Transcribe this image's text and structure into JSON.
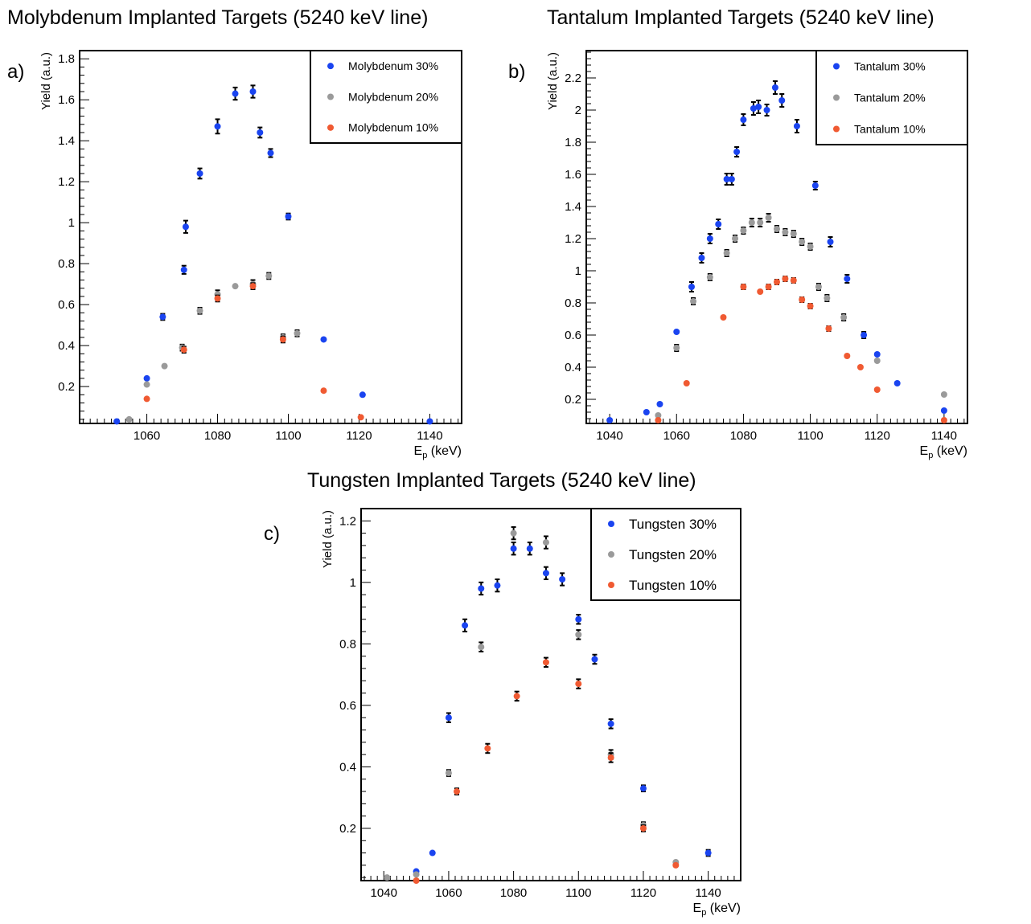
{
  "colors": {
    "blue": "#1a44f0",
    "gray": "#9a9a9a",
    "orange": "#f05a32",
    "error_bar": "#000000",
    "frame": "#000000"
  },
  "chart_data": [
    {
      "type": "scatter",
      "panel_label": "a)",
      "title": "Molybdenum Implanted Targets (5240 keV line)",
      "xlabel_main": "E",
      "xlabel_sub": "p",
      "xlabel_unit": " (keV)",
      "ylabel": "Yield (a.u.)",
      "xlim": [
        1041,
        1149
      ],
      "ylim": [
        0.02,
        1.84
      ],
      "xticks": [
        1060,
        1080,
        1100,
        1120,
        1140
      ],
      "xtick_labels": [
        "1060",
        "1080",
        "1100",
        "1120",
        "1140"
      ],
      "yticks": [
        0.2,
        0.4,
        0.6,
        0.8,
        1,
        1.2,
        1.4,
        1.6,
        1.8
      ],
      "ytick_labels": [
        "0.2",
        "0.4",
        "0.6",
        "0.8",
        "1",
        "1.2",
        "1.4",
        "1.6",
        "1.8"
      ],
      "legend_position": "top-right",
      "series": [
        {
          "name": "Molybdenum 30%",
          "color": "blue",
          "x": [
            1051.5,
            1060,
            1064.5,
            1070.5,
            1071,
            1075,
            1080,
            1085,
            1090,
            1092,
            1095,
            1100,
            1110,
            1121,
            1140
          ],
          "y": [
            0.03,
            0.24,
            0.54,
            0.77,
            0.98,
            1.24,
            1.47,
            1.63,
            1.64,
            1.44,
            1.34,
            1.03,
            0.43,
            0.16,
            0.03
          ],
          "err": [
            0.005,
            0,
            0.015,
            0.02,
            0.03,
            0.025,
            0.035,
            0.03,
            0.03,
            0.025,
            0.02,
            0.015,
            0,
            0,
            0
          ]
        },
        {
          "name": "Molybdenum 20%",
          "color": "gray",
          "x": [
            1055,
            1060,
            1065,
            1070,
            1075,
            1080,
            1085,
            1090,
            1094.5,
            1098.5,
            1102.5
          ],
          "y": [
            0.04,
            0.21,
            0.3,
            0.39,
            0.57,
            0.65,
            0.69,
            0.7,
            0.74,
            0.44,
            0.46
          ],
          "err": [
            0,
            0,
            0,
            0.015,
            0.015,
            0.02,
            0,
            0.02,
            0.015,
            0.015,
            0.015
          ]
        },
        {
          "name": "Molybdenum 10%",
          "color": "orange",
          "x": [
            1060,
            1070.5,
            1080,
            1090,
            1098.5,
            1110,
            1120.5
          ],
          "y": [
            0.14,
            0.38,
            0.63,
            0.69,
            0.43,
            0.18,
            0.05
          ],
          "err": [
            0,
            0.015,
            0.015,
            0.015,
            0.015,
            0,
            0
          ]
        }
      ]
    },
    {
      "type": "scatter",
      "panel_label": "b)",
      "title": "Tantalum Implanted Targets (5240 keV line)",
      "xlabel_main": "E",
      "xlabel_sub": "p",
      "xlabel_unit": " (keV)",
      "ylabel": "Yield (a.u.)",
      "xlim": [
        1033,
        1147
      ],
      "ylim": [
        0.05,
        2.37
      ],
      "xticks": [
        1040,
        1060,
        1080,
        1100,
        1120,
        1140
      ],
      "xtick_labels": [
        "1040",
        "1060",
        "1080",
        "1100",
        "1120",
        "1140"
      ],
      "yticks": [
        0.2,
        0.4,
        0.6,
        0.8,
        1,
        1.2,
        1.4,
        1.6,
        1.8,
        2,
        2.2
      ],
      "ytick_labels": [
        "0.2",
        "0.4",
        "0.6",
        "0.8",
        "1",
        "1.2",
        "1.4",
        "1.6",
        "1.8",
        "2",
        "2.2"
      ],
      "legend_position": "top-right",
      "series": [
        {
          "name": "Tantalum 30%",
          "color": "blue",
          "x": [
            1040,
            1051,
            1055,
            1060,
            1064.5,
            1067.5,
            1070,
            1072.5,
            1075,
            1076.5,
            1078,
            1080,
            1083,
            1084.5,
            1087,
            1089.5,
            1091.5,
            1096,
            1101.5,
            1106,
            1111,
            1116,
            1120,
            1126,
            1140
          ],
          "y": [
            0.07,
            0.12,
            0.17,
            0.62,
            0.9,
            1.08,
            1.2,
            1.29,
            1.57,
            1.57,
            1.74,
            1.94,
            2.01,
            2.02,
            2,
            2.14,
            2.06,
            1.9,
            1.53,
            1.18,
            0.95,
            0.6,
            0.48,
            0.3,
            0.13
          ],
          "err": [
            0,
            0,
            0,
            0,
            0.03,
            0.03,
            0.03,
            0.03,
            0.035,
            0.035,
            0.03,
            0.035,
            0.04,
            0.04,
            0.035,
            0.04,
            0.04,
            0.04,
            0.025,
            0.03,
            0.025,
            0.02,
            0,
            0,
            0
          ]
        },
        {
          "name": "Tantalum 20%",
          "color": "gray",
          "x": [
            1054.5,
            1060,
            1065,
            1070,
            1075,
            1077.5,
            1080,
            1082.5,
            1085,
            1087.5,
            1090,
            1092.5,
            1095,
            1097.5,
            1100,
            1102.5,
            1105,
            1110,
            1120,
            1140
          ],
          "y": [
            0.1,
            0.52,
            0.81,
            0.96,
            1.11,
            1.2,
            1.25,
            1.3,
            1.3,
            1.33,
            1.26,
            1.24,
            1.23,
            1.18,
            1.15,
            0.9,
            0.83,
            0.71,
            0.44,
            0.23
          ],
          "err": [
            0,
            0.02,
            0.02,
            0.02,
            0.02,
            0.02,
            0.02,
            0.025,
            0.025,
            0.025,
            0.02,
            0.02,
            0.02,
            0.02,
            0.02,
            0.02,
            0.02,
            0.02,
            0,
            0
          ]
        },
        {
          "name": "Tantalum 10%",
          "color": "orange",
          "x": [
            1054.5,
            1063,
            1074,
            1080,
            1085,
            1087.5,
            1090,
            1092.5,
            1095,
            1097.5,
            1100,
            1105.5,
            1111,
            1115,
            1120,
            1140
          ],
          "y": [
            0.07,
            0.3,
            0.71,
            0.9,
            0.87,
            0.9,
            0.93,
            0.95,
            0.94,
            0.82,
            0.78,
            0.64,
            0.47,
            0.4,
            0.26,
            0.07
          ],
          "err": [
            0,
            0,
            0,
            0.015,
            0,
            0.015,
            0.015,
            0.015,
            0.015,
            0.015,
            0.015,
            0.015,
            0,
            0,
            0,
            0
          ]
        }
      ]
    },
    {
      "type": "scatter",
      "panel_label": "c)",
      "title": "Tungsten Implanted Targets (5240 keV line)",
      "xlabel_main": "E",
      "xlabel_sub": "p",
      "xlabel_unit": " (keV)",
      "ylabel": "Yield (a.u.)",
      "xlim": [
        1033,
        1150
      ],
      "ylim": [
        0.03,
        1.24
      ],
      "xticks": [
        1040,
        1060,
        1080,
        1100,
        1120,
        1140
      ],
      "xtick_labels": [
        "1040",
        "1060",
        "1080",
        "1100",
        "1120",
        "1140"
      ],
      "yticks": [
        0.2,
        0.4,
        0.6,
        0.8,
        1,
        1.2
      ],
      "ytick_labels": [
        "0.2",
        "0.4",
        "0.6",
        "0.8",
        "1",
        "1.2"
      ],
      "legend_position": "top-right",
      "series": [
        {
          "name": "Tungsten 30%",
          "color": "blue",
          "x": [
            1050,
            1055,
            1060,
            1065,
            1070,
            1075,
            1080,
            1085,
            1090,
            1095,
            1100,
            1105,
            1110,
            1120,
            1140
          ],
          "y": [
            0.06,
            0.12,
            0.56,
            0.86,
            0.98,
            0.99,
            1.11,
            1.11,
            1.03,
            1.01,
            0.88,
            0.75,
            0.54,
            0.33,
            0.12
          ],
          "err": [
            0,
            0,
            0.015,
            0.02,
            0.02,
            0.02,
            0.02,
            0.02,
            0.02,
            0.02,
            0.015,
            0.015,
            0.015,
            0.01,
            0.01
          ]
        },
        {
          "name": "Tungsten 20%",
          "color": "gray",
          "x": [
            1041,
            1050,
            1060,
            1070,
            1080,
            1090,
            1100,
            1110,
            1120,
            1130
          ],
          "y": [
            0.04,
            0.05,
            0.38,
            0.79,
            1.16,
            1.13,
            0.83,
            0.44,
            0.21,
            0.09
          ],
          "err": [
            0,
            0,
            0.01,
            0.015,
            0.02,
            0.02,
            0.015,
            0.015,
            0.01,
            0
          ]
        },
        {
          "name": "Tungsten 10%",
          "color": "orange",
          "x": [
            1050,
            1062.5,
            1072,
            1081,
            1090,
            1100,
            1110,
            1120,
            1130
          ],
          "y": [
            0.03,
            0.32,
            0.46,
            0.63,
            0.74,
            0.67,
            0.43,
            0.2,
            0.08
          ],
          "err": [
            0,
            0.01,
            0.015,
            0.015,
            0.015,
            0.015,
            0.015,
            0.01,
            0
          ]
        }
      ]
    }
  ]
}
